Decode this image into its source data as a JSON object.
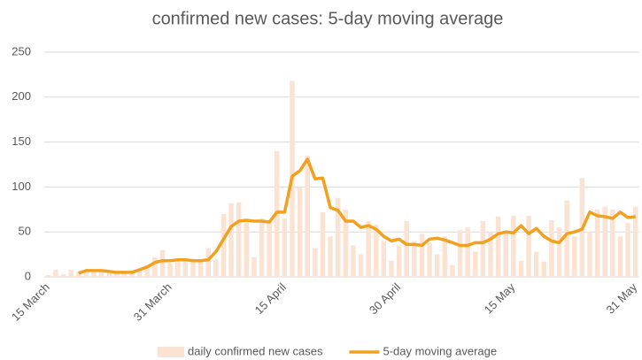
{
  "chart_data": {
    "type": "combo",
    "title": "confirmed new cases: 5-day moving average",
    "categories": [
      "15 March",
      null,
      null,
      null,
      null,
      null,
      null,
      null,
      null,
      null,
      null,
      null,
      null,
      null,
      null,
      null,
      "31 March",
      null,
      null,
      null,
      null,
      null,
      null,
      null,
      null,
      null,
      null,
      null,
      null,
      null,
      null,
      "15 April",
      null,
      null,
      null,
      null,
      null,
      null,
      null,
      null,
      null,
      null,
      null,
      null,
      null,
      null,
      "30 April",
      null,
      null,
      null,
      null,
      null,
      null,
      null,
      null,
      null,
      null,
      null,
      null,
      null,
      null,
      "15 May",
      null,
      null,
      null,
      null,
      null,
      null,
      null,
      null,
      null,
      null,
      null,
      null,
      null,
      null,
      null,
      "31 May"
    ],
    "series": [
      {
        "name": "daily confirmed new cases",
        "type": "bar",
        "color": "#fbe3d3",
        "values": [
          2,
          8,
          3,
          8,
          5,
          7,
          8,
          6,
          6,
          5,
          4,
          6,
          8,
          12,
          22,
          30,
          15,
          18,
          20,
          17,
          18,
          32,
          20,
          70,
          82,
          83,
          60,
          22,
          65,
          62,
          140,
          65,
          218,
          100,
          135,
          32,
          72,
          45,
          88,
          75,
          35,
          25,
          62,
          58,
          40,
          18,
          35,
          62,
          40,
          48,
          38,
          25,
          45,
          13,
          52,
          55,
          28,
          62,
          50,
          67,
          50,
          68,
          18,
          68,
          28,
          17,
          63,
          55,
          85,
          45,
          110,
          50,
          75,
          78,
          75,
          45,
          60,
          78
        ]
      },
      {
        "name": "5-day moving average",
        "type": "line",
        "color": "#f2a01e",
        "values": [
          null,
          null,
          null,
          null,
          4,
          7,
          7,
          7,
          6,
          5,
          5,
          5,
          8,
          11,
          16,
          18,
          18,
          19,
          19,
          18,
          18,
          19,
          28,
          42,
          56,
          62,
          63,
          62,
          62,
          61,
          72,
          72,
          112,
          118,
          131,
          109,
          110,
          77,
          74,
          62,
          62,
          55,
          57,
          53,
          45,
          40,
          42,
          36,
          36,
          35,
          42,
          43,
          41,
          38,
          35,
          35,
          38,
          38,
          42,
          48,
          50,
          49,
          57,
          48,
          54,
          45,
          40,
          38,
          48,
          50,
          53,
          72,
          68,
          67,
          65,
          72,
          66,
          67
        ]
      }
    ],
    "ylim": [
      0,
      250
    ],
    "yticks": [
      0,
      50,
      100,
      150,
      200,
      250
    ],
    "grid": true,
    "legend": "bottom"
  }
}
